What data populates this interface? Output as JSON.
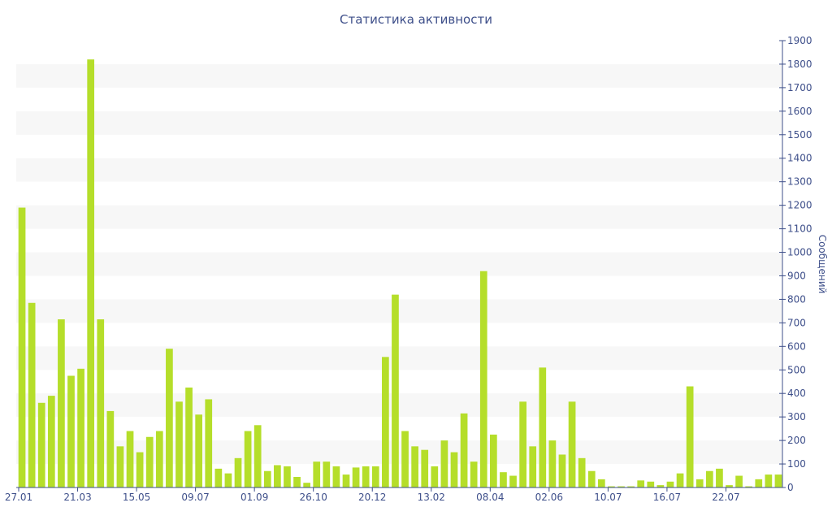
{
  "chart_data": {
    "type": "bar",
    "title": "Статистика активности",
    "ylabel": "Сообщений",
    "ylim": [
      0,
      1900
    ],
    "y_ticks": [
      0,
      100,
      200,
      300,
      400,
      500,
      600,
      700,
      800,
      900,
      1000,
      1100,
      1200,
      1300,
      1400,
      1500,
      1600,
      1700,
      1800,
      1900
    ],
    "y_axis_side": "right",
    "grid": "alternating horizontal bands",
    "x_tick_labels": [
      {
        "label": "27.01",
        "index": 0
      },
      {
        "label": "21.03",
        "index": 6
      },
      {
        "label": "15.05",
        "index": 12
      },
      {
        "label": "09.07",
        "index": 18
      },
      {
        "label": "01.09",
        "index": 24
      },
      {
        "label": "26.10",
        "index": 30
      },
      {
        "label": "20.12",
        "index": 36
      },
      {
        "label": "13.02",
        "index": 42
      },
      {
        "label": "08.04",
        "index": 48
      },
      {
        "label": "02.06",
        "index": 54
      },
      {
        "label": "10.07",
        "index": 60
      },
      {
        "label": "16.07",
        "index": 66
      },
      {
        "label": "22.07",
        "index": 72
      }
    ],
    "values": [
      1190,
      785,
      360,
      390,
      715,
      475,
      505,
      1820,
      715,
      325,
      175,
      240,
      150,
      215,
      240,
      590,
      365,
      425,
      310,
      375,
      80,
      60,
      125,
      240,
      265,
      70,
      95,
      90,
      45,
      20,
      110,
      110,
      90,
      55,
      85,
      90,
      90,
      555,
      820,
      240,
      175,
      160,
      90,
      200,
      150,
      315,
      110,
      920,
      225,
      65,
      50,
      365,
      175,
      510,
      200,
      140,
      365,
      125,
      70,
      35,
      5,
      5,
      5,
      30,
      25,
      10,
      25,
      60,
      430,
      35,
      70,
      80,
      10,
      50,
      5,
      35,
      55,
      55
    ],
    "bar_color": "#b5de2a"
  }
}
